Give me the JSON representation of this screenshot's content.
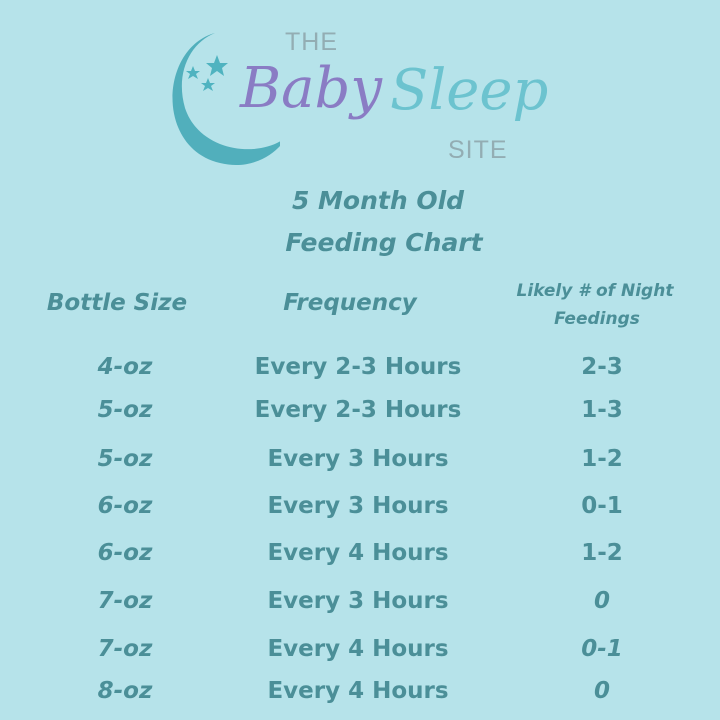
{
  "logo": {
    "the": "THE",
    "baby": "Baby",
    "sleep": "Sleep",
    "site": "SITE",
    "colors": {
      "baby": "#8a7cc4",
      "sleep": "#6cc3cf",
      "moon": "#3fa6b4"
    }
  },
  "title": {
    "line1": "5 Month Old",
    "line2": "Feeding Chart"
  },
  "table": {
    "headers": {
      "bottle": "Bottle Size",
      "frequency": "Frequency",
      "night_line1": "Likely # of Night",
      "night_line2": "Feedings"
    },
    "rows": [
      {
        "bottle": "4-oz",
        "frequency": "Every 2-3 Hours",
        "night": "2-3"
      },
      {
        "bottle": "5-oz",
        "frequency": "Every 2-3 Hours",
        "night": "1-3"
      },
      {
        "bottle": "5-oz",
        "frequency": "Every 3 Hours",
        "night": "1-2"
      },
      {
        "bottle": "6-oz",
        "frequency": "Every 3 Hours",
        "night": "0-1"
      },
      {
        "bottle": "6-oz",
        "frequency": "Every 4 Hours",
        "night": "1-2"
      },
      {
        "bottle": "7-oz",
        "frequency": "Every 3 Hours",
        "night": "0"
      },
      {
        "bottle": "7-oz",
        "frequency": "Every 4 Hours",
        "night": "0-1"
      },
      {
        "bottle": "8-oz",
        "frequency": "Every 4 Hours",
        "night": "0"
      }
    ]
  },
  "colors": {
    "background": "#b6e3ea",
    "text": "#4b8f98"
  }
}
